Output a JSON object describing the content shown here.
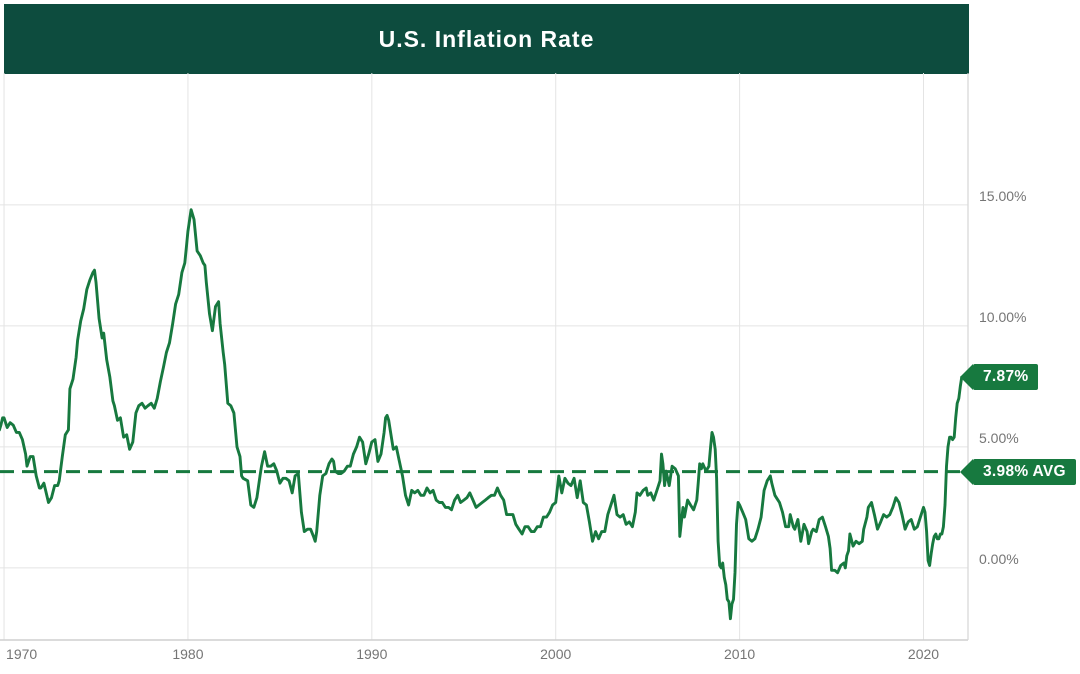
{
  "header": {
    "title": "U.S. Inflation Rate",
    "background_color": "#0d4c3e",
    "text_color": "#ffffff"
  },
  "chart_data": {
    "type": "line",
    "title": "U.S. Inflation Rate",
    "xlabel": "",
    "ylabel": "",
    "series_name": "U.S. inflation rate, year-over-year %",
    "grid": true,
    "legend_position": "none",
    "y_axis_side": "right",
    "line_color": "#17793f",
    "grid_color": "#e4e4e4",
    "axis_line_color": "#cfcfcf",
    "tick_label_color": "#757575",
    "x_tick_values": [
      1970,
      1980,
      1990,
      2000,
      2010,
      2020
    ],
    "x_ticks": [
      "1970",
      "1980",
      "1990",
      "2000",
      "2010",
      "2020"
    ],
    "y_tick_values": [
      0,
      5,
      10,
      15
    ],
    "y_ticks": [
      "0.00%",
      "5.00%",
      "10.00%",
      "15.00%"
    ],
    "xlim": [
      1969.78,
      2022.42
    ],
    "ylim": [
      -2.98,
      20.45
    ],
    "average_line": {
      "value": 3.98,
      "label": "3.98% AVG",
      "style": "dashed"
    },
    "last_point": {
      "x": 2022.08,
      "value": 7.87,
      "label": "7.87%"
    },
    "points": [
      [
        1969.75,
        5.7
      ],
      [
        1969.83,
        5.9
      ],
      [
        1969.92,
        6.2
      ],
      [
        1970.0,
        6.2
      ],
      [
        1970.17,
        5.8
      ],
      [
        1970.33,
        6.0
      ],
      [
        1970.5,
        5.9
      ],
      [
        1970.67,
        5.6
      ],
      [
        1970.83,
        5.6
      ],
      [
        1971.0,
        5.3
      ],
      [
        1971.17,
        4.7
      ],
      [
        1971.25,
        4.2
      ],
      [
        1971.42,
        4.6
      ],
      [
        1971.58,
        4.6
      ],
      [
        1971.75,
        3.8
      ],
      [
        1971.92,
        3.3
      ],
      [
        1972.0,
        3.3
      ],
      [
        1972.17,
        3.5
      ],
      [
        1972.42,
        2.7
      ],
      [
        1972.58,
        2.9
      ],
      [
        1972.75,
        3.4
      ],
      [
        1972.92,
        3.4
      ],
      [
        1973.0,
        3.6
      ],
      [
        1973.17,
        4.6
      ],
      [
        1973.33,
        5.5
      ],
      [
        1973.5,
        5.7
      ],
      [
        1973.58,
        7.4
      ],
      [
        1973.75,
        7.8
      ],
      [
        1973.92,
        8.7
      ],
      [
        1974.0,
        9.4
      ],
      [
        1974.17,
        10.2
      ],
      [
        1974.33,
        10.7
      ],
      [
        1974.5,
        11.5
      ],
      [
        1974.67,
        11.9
      ],
      [
        1974.83,
        12.2
      ],
      [
        1974.92,
        12.3
      ],
      [
        1975.0,
        11.8
      ],
      [
        1975.17,
        10.3
      ],
      [
        1975.33,
        9.5
      ],
      [
        1975.42,
        9.7
      ],
      [
        1975.58,
        8.6
      ],
      [
        1975.75,
        7.9
      ],
      [
        1975.92,
        6.9
      ],
      [
        1976.0,
        6.7
      ],
      [
        1976.17,
        6.1
      ],
      [
        1976.33,
        6.2
      ],
      [
        1976.5,
        5.4
      ],
      [
        1976.67,
        5.5
      ],
      [
        1976.83,
        4.9
      ],
      [
        1977.0,
        5.2
      ],
      [
        1977.17,
        6.4
      ],
      [
        1977.33,
        6.7
      ],
      [
        1977.5,
        6.8
      ],
      [
        1977.67,
        6.6
      ],
      [
        1977.83,
        6.7
      ],
      [
        1978.0,
        6.8
      ],
      [
        1978.17,
        6.6
      ],
      [
        1978.33,
        7.0
      ],
      [
        1978.5,
        7.7
      ],
      [
        1978.67,
        8.3
      ],
      [
        1978.83,
        8.9
      ],
      [
        1979.0,
        9.3
      ],
      [
        1979.17,
        10.1
      ],
      [
        1979.33,
        10.9
      ],
      [
        1979.5,
        11.3
      ],
      [
        1979.67,
        12.2
      ],
      [
        1979.83,
        12.6
      ],
      [
        1979.92,
        13.3
      ],
      [
        1980.0,
        13.9
      ],
      [
        1980.17,
        14.8
      ],
      [
        1980.33,
        14.4
      ],
      [
        1980.5,
        13.1
      ],
      [
        1980.67,
        12.9
      ],
      [
        1980.83,
        12.6
      ],
      [
        1980.92,
        12.5
      ],
      [
        1981.0,
        11.8
      ],
      [
        1981.17,
        10.5
      ],
      [
        1981.33,
        9.8
      ],
      [
        1981.5,
        10.8
      ],
      [
        1981.67,
        11.0
      ],
      [
        1981.75,
        10.1
      ],
      [
        1981.92,
        8.9
      ],
      [
        1982.0,
        8.4
      ],
      [
        1982.17,
        6.8
      ],
      [
        1982.33,
        6.7
      ],
      [
        1982.5,
        6.4
      ],
      [
        1982.67,
        5.0
      ],
      [
        1982.83,
        4.6
      ],
      [
        1982.92,
        3.8
      ],
      [
        1983.0,
        3.7
      ],
      [
        1983.25,
        3.6
      ],
      [
        1983.42,
        2.6
      ],
      [
        1983.58,
        2.5
      ],
      [
        1983.75,
        2.9
      ],
      [
        1983.92,
        3.8
      ],
      [
        1984.0,
        4.2
      ],
      [
        1984.17,
        4.8
      ],
      [
        1984.33,
        4.2
      ],
      [
        1984.5,
        4.2
      ],
      [
        1984.67,
        4.3
      ],
      [
        1984.83,
        4.0
      ],
      [
        1985.0,
        3.5
      ],
      [
        1985.17,
        3.7
      ],
      [
        1985.33,
        3.7
      ],
      [
        1985.5,
        3.6
      ],
      [
        1985.67,
        3.1
      ],
      [
        1985.83,
        3.8
      ],
      [
        1986.0,
        3.9
      ],
      [
        1986.17,
        2.3
      ],
      [
        1986.33,
        1.5
      ],
      [
        1986.5,
        1.6
      ],
      [
        1986.67,
        1.6
      ],
      [
        1986.83,
        1.3
      ],
      [
        1986.92,
        1.1
      ],
      [
        1987.0,
        1.5
      ],
      [
        1987.17,
        3.0
      ],
      [
        1987.33,
        3.8
      ],
      [
        1987.5,
        3.9
      ],
      [
        1987.67,
        4.3
      ],
      [
        1987.83,
        4.5
      ],
      [
        1987.92,
        4.4
      ],
      [
        1988.0,
        4.0
      ],
      [
        1988.17,
        3.9
      ],
      [
        1988.33,
        3.9
      ],
      [
        1988.5,
        4.0
      ],
      [
        1988.67,
        4.2
      ],
      [
        1988.83,
        4.2
      ],
      [
        1989.0,
        4.7
      ],
      [
        1989.17,
        5.0
      ],
      [
        1989.33,
        5.4
      ],
      [
        1989.5,
        5.2
      ],
      [
        1989.67,
        4.3
      ],
      [
        1989.83,
        4.7
      ],
      [
        1990.0,
        5.2
      ],
      [
        1990.17,
        5.3
      ],
      [
        1990.33,
        4.4
      ],
      [
        1990.5,
        4.7
      ],
      [
        1990.67,
        5.6
      ],
      [
        1990.75,
        6.2
      ],
      [
        1990.83,
        6.3
      ],
      [
        1990.92,
        6.1
      ],
      [
        1991.0,
        5.7
      ],
      [
        1991.17,
        4.9
      ],
      [
        1991.33,
        5.0
      ],
      [
        1991.5,
        4.4
      ],
      [
        1991.67,
        3.8
      ],
      [
        1991.83,
        3.0
      ],
      [
        1992.0,
        2.6
      ],
      [
        1992.17,
        3.2
      ],
      [
        1992.33,
        3.1
      ],
      [
        1992.5,
        3.2
      ],
      [
        1992.67,
        3.0
      ],
      [
        1992.83,
        3.0
      ],
      [
        1993.0,
        3.3
      ],
      [
        1993.17,
        3.1
      ],
      [
        1993.33,
        3.2
      ],
      [
        1993.5,
        2.8
      ],
      [
        1993.67,
        2.7
      ],
      [
        1993.83,
        2.7
      ],
      [
        1994.0,
        2.5
      ],
      [
        1994.17,
        2.5
      ],
      [
        1994.33,
        2.4
      ],
      [
        1994.5,
        2.8
      ],
      [
        1994.67,
        3.0
      ],
      [
        1994.83,
        2.7
      ],
      [
        1995.0,
        2.8
      ],
      [
        1995.17,
        2.9
      ],
      [
        1995.33,
        3.1
      ],
      [
        1995.5,
        2.8
      ],
      [
        1995.67,
        2.5
      ],
      [
        1995.83,
        2.6
      ],
      [
        1996.0,
        2.7
      ],
      [
        1996.17,
        2.8
      ],
      [
        1996.33,
        2.9
      ],
      [
        1996.5,
        3.0
      ],
      [
        1996.67,
        3.0
      ],
      [
        1996.83,
        3.3
      ],
      [
        1997.0,
        3.0
      ],
      [
        1997.17,
        2.8
      ],
      [
        1997.33,
        2.2
      ],
      [
        1997.5,
        2.2
      ],
      [
        1997.67,
        2.2
      ],
      [
        1997.83,
        1.8
      ],
      [
        1998.0,
        1.6
      ],
      [
        1998.17,
        1.4
      ],
      [
        1998.33,
        1.7
      ],
      [
        1998.5,
        1.7
      ],
      [
        1998.67,
        1.5
      ],
      [
        1998.83,
        1.5
      ],
      [
        1999.0,
        1.7
      ],
      [
        1999.17,
        1.7
      ],
      [
        1999.33,
        2.1
      ],
      [
        1999.5,
        2.1
      ],
      [
        1999.67,
        2.3
      ],
      [
        1999.83,
        2.6
      ],
      [
        2000.0,
        2.7
      ],
      [
        2000.17,
        3.8
      ],
      [
        2000.33,
        3.1
      ],
      [
        2000.5,
        3.7
      ],
      [
        2000.67,
        3.5
      ],
      [
        2000.83,
        3.4
      ],
      [
        2001.0,
        3.7
      ],
      [
        2001.17,
        2.9
      ],
      [
        2001.33,
        3.6
      ],
      [
        2001.5,
        2.7
      ],
      [
        2001.67,
        2.6
      ],
      [
        2001.83,
        1.9
      ],
      [
        2002.0,
        1.1
      ],
      [
        2002.17,
        1.5
      ],
      [
        2002.33,
        1.2
      ],
      [
        2002.5,
        1.5
      ],
      [
        2002.67,
        1.5
      ],
      [
        2002.83,
        2.2
      ],
      [
        2003.0,
        2.6
      ],
      [
        2003.17,
        3.0
      ],
      [
        2003.33,
        2.2
      ],
      [
        2003.5,
        2.1
      ],
      [
        2003.67,
        2.2
      ],
      [
        2003.83,
        1.8
      ],
      [
        2004.0,
        1.9
      ],
      [
        2004.17,
        1.7
      ],
      [
        2004.33,
        2.3
      ],
      [
        2004.42,
        3.1
      ],
      [
        2004.58,
        3.0
      ],
      [
        2004.75,
        3.2
      ],
      [
        2004.92,
        3.3
      ],
      [
        2005.0,
        3.0
      ],
      [
        2005.17,
        3.1
      ],
      [
        2005.33,
        2.8
      ],
      [
        2005.5,
        3.2
      ],
      [
        2005.67,
        3.6
      ],
      [
        2005.75,
        4.7
      ],
      [
        2005.83,
        4.3
      ],
      [
        2005.92,
        3.4
      ],
      [
        2006.0,
        4.0
      ],
      [
        2006.17,
        3.4
      ],
      [
        2006.33,
        4.2
      ],
      [
        2006.5,
        4.1
      ],
      [
        2006.67,
        3.8
      ],
      [
        2006.75,
        1.3
      ],
      [
        2006.92,
        2.5
      ],
      [
        2007.0,
        2.1
      ],
      [
        2007.17,
        2.8
      ],
      [
        2007.33,
        2.6
      ],
      [
        2007.5,
        2.4
      ],
      [
        2007.67,
        2.8
      ],
      [
        2007.75,
        3.5
      ],
      [
        2007.83,
        4.3
      ],
      [
        2007.92,
        4.1
      ],
      [
        2008.0,
        4.3
      ],
      [
        2008.17,
        4.0
      ],
      [
        2008.33,
        4.2
      ],
      [
        2008.42,
        5.0
      ],
      [
        2008.5,
        5.6
      ],
      [
        2008.58,
        5.4
      ],
      [
        2008.67,
        4.9
      ],
      [
        2008.75,
        3.7
      ],
      [
        2008.83,
        1.1
      ],
      [
        2008.92,
        0.1
      ],
      [
        2009.0,
        0.0
      ],
      [
        2009.08,
        0.2
      ],
      [
        2009.17,
        -0.4
      ],
      [
        2009.25,
        -0.7
      ],
      [
        2009.33,
        -1.3
      ],
      [
        2009.42,
        -1.4
      ],
      [
        2009.5,
        -2.1
      ],
      [
        2009.58,
        -1.5
      ],
      [
        2009.67,
        -1.3
      ],
      [
        2009.75,
        -0.2
      ],
      [
        2009.83,
        1.8
      ],
      [
        2009.92,
        2.7
      ],
      [
        2010.0,
        2.6
      ],
      [
        2010.17,
        2.3
      ],
      [
        2010.33,
        2.0
      ],
      [
        2010.5,
        1.2
      ],
      [
        2010.67,
        1.1
      ],
      [
        2010.83,
        1.2
      ],
      [
        2011.0,
        1.6
      ],
      [
        2011.17,
        2.1
      ],
      [
        2011.33,
        3.2
      ],
      [
        2011.5,
        3.6
      ],
      [
        2011.67,
        3.8
      ],
      [
        2011.75,
        3.5
      ],
      [
        2011.92,
        3.0
      ],
      [
        2012.0,
        2.9
      ],
      [
        2012.17,
        2.7
      ],
      [
        2012.33,
        2.3
      ],
      [
        2012.5,
        1.7
      ],
      [
        2012.67,
        1.7
      ],
      [
        2012.75,
        2.2
      ],
      [
        2012.92,
        1.7
      ],
      [
        2013.0,
        1.6
      ],
      [
        2013.17,
        2.0
      ],
      [
        2013.33,
        1.1
      ],
      [
        2013.5,
        1.8
      ],
      [
        2013.67,
        1.5
      ],
      [
        2013.75,
        1.0
      ],
      [
        2013.92,
        1.5
      ],
      [
        2014.0,
        1.6
      ],
      [
        2014.17,
        1.5
      ],
      [
        2014.33,
        2.0
      ],
      [
        2014.5,
        2.1
      ],
      [
        2014.67,
        1.7
      ],
      [
        2014.83,
        1.3
      ],
      [
        2014.92,
        0.8
      ],
      [
        2015.0,
        -0.1
      ],
      [
        2015.17,
        -0.1
      ],
      [
        2015.33,
        -0.2
      ],
      [
        2015.5,
        0.1
      ],
      [
        2015.67,
        0.2
      ],
      [
        2015.75,
        0.0
      ],
      [
        2015.83,
        0.5
      ],
      [
        2015.92,
        0.7
      ],
      [
        2016.0,
        1.4
      ],
      [
        2016.17,
        0.9
      ],
      [
        2016.33,
        1.1
      ],
      [
        2016.5,
        1.0
      ],
      [
        2016.67,
        1.1
      ],
      [
        2016.75,
        1.6
      ],
      [
        2016.92,
        2.1
      ],
      [
        2017.0,
        2.5
      ],
      [
        2017.17,
        2.7
      ],
      [
        2017.33,
        2.2
      ],
      [
        2017.5,
        1.6
      ],
      [
        2017.67,
        1.9
      ],
      [
        2017.83,
        2.2
      ],
      [
        2018.0,
        2.1
      ],
      [
        2018.17,
        2.2
      ],
      [
        2018.33,
        2.5
      ],
      [
        2018.5,
        2.9
      ],
      [
        2018.67,
        2.7
      ],
      [
        2018.83,
        2.2
      ],
      [
        2018.92,
        1.9
      ],
      [
        2019.0,
        1.6
      ],
      [
        2019.17,
        1.9
      ],
      [
        2019.33,
        2.0
      ],
      [
        2019.5,
        1.6
      ],
      [
        2019.67,
        1.7
      ],
      [
        2019.83,
        2.1
      ],
      [
        2020.0,
        2.5
      ],
      [
        2020.08,
        2.3
      ],
      [
        2020.17,
        1.5
      ],
      [
        2020.25,
        0.3
      ],
      [
        2020.33,
        0.1
      ],
      [
        2020.42,
        0.6
      ],
      [
        2020.5,
        1.0
      ],
      [
        2020.58,
        1.3
      ],
      [
        2020.67,
        1.4
      ],
      [
        2020.75,
        1.2
      ],
      [
        2020.83,
        1.2
      ],
      [
        2020.92,
        1.4
      ],
      [
        2021.0,
        1.4
      ],
      [
        2021.08,
        1.7
      ],
      [
        2021.17,
        2.6
      ],
      [
        2021.25,
        4.2
      ],
      [
        2021.33,
        5.0
      ],
      [
        2021.42,
        5.4
      ],
      [
        2021.5,
        5.4
      ],
      [
        2021.58,
        5.3
      ],
      [
        2021.67,
        5.4
      ],
      [
        2021.75,
        6.2
      ],
      [
        2021.83,
        6.8
      ],
      [
        2021.92,
        7.0
      ],
      [
        2022.0,
        7.5
      ],
      [
        2022.08,
        7.87
      ]
    ]
  }
}
